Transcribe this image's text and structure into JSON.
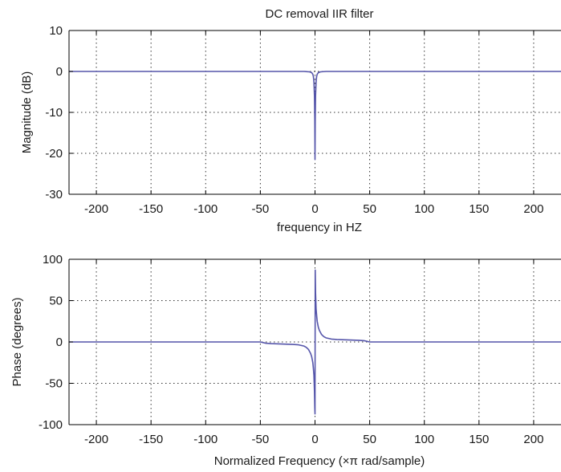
{
  "chart_data": [
    {
      "type": "line",
      "title": "DC removal IIR filter",
      "xlabel": "frequency in HZ",
      "ylabel": "Magnitude (dB)",
      "xlim": [
        -225,
        225
      ],
      "ylim": [
        -30,
        10
      ],
      "xticks": [
        -200,
        -150,
        -100,
        -50,
        0,
        50,
        100,
        150,
        200
      ],
      "yticks": [
        10,
        0,
        -10,
        -20,
        -30
      ],
      "grid": true,
      "line_color": "#5555aa",
      "series": [
        {
          "x": [
            -225,
            -20,
            -10,
            -5,
            -3,
            -2,
            -1.5,
            -1,
            -0.5,
            -0.2,
            0,
            0.2,
            0.5,
            1,
            1.5,
            2,
            3,
            5,
            10,
            20,
            225
          ],
          "y": [
            0,
            0,
            0,
            -0.1,
            -0.3,
            -0.7,
            -1.2,
            -2.5,
            -6,
            -12,
            -21.5,
            -12,
            -6,
            -2.5,
            -1.2,
            -0.7,
            -0.3,
            -0.1,
            0,
            0,
            0
          ]
        }
      ]
    },
    {
      "type": "line",
      "title": "",
      "xlabel": "Normalized Frequency  (×π rad/sample)",
      "ylabel": "Phase (degrees)",
      "xlim": [
        -225,
        225
      ],
      "ylim": [
        -100,
        100
      ],
      "xticks": [
        -200,
        -150,
        -100,
        -50,
        0,
        50,
        100,
        150,
        200
      ],
      "yticks": [
        100,
        50,
        0,
        -50,
        -100
      ],
      "grid": true,
      "line_color": "#5555aa",
      "series": [
        {
          "x": [
            -225,
            -50,
            -45,
            -40,
            -30,
            -20,
            -15,
            -10,
            -8,
            -6,
            -4,
            -3,
            -2,
            -1.5,
            -1,
            -0.5,
            -0.2,
            0,
            0.2,
            0.5,
            1,
            1.5,
            2,
            3,
            4,
            6,
            8,
            10,
            15,
            20,
            30,
            40,
            45,
            50,
            225
          ],
          "y": [
            0,
            0,
            -1.5,
            -2,
            -2.5,
            -3,
            -3.5,
            -5,
            -6.5,
            -9,
            -14,
            -18,
            -25,
            -32,
            -40,
            -60,
            -80,
            -87,
            87,
            60,
            40,
            32,
            25,
            18,
            14,
            9,
            6.5,
            5,
            3.5,
            3,
            2.5,
            2,
            1.5,
            0,
            0
          ]
        }
      ]
    }
  ]
}
